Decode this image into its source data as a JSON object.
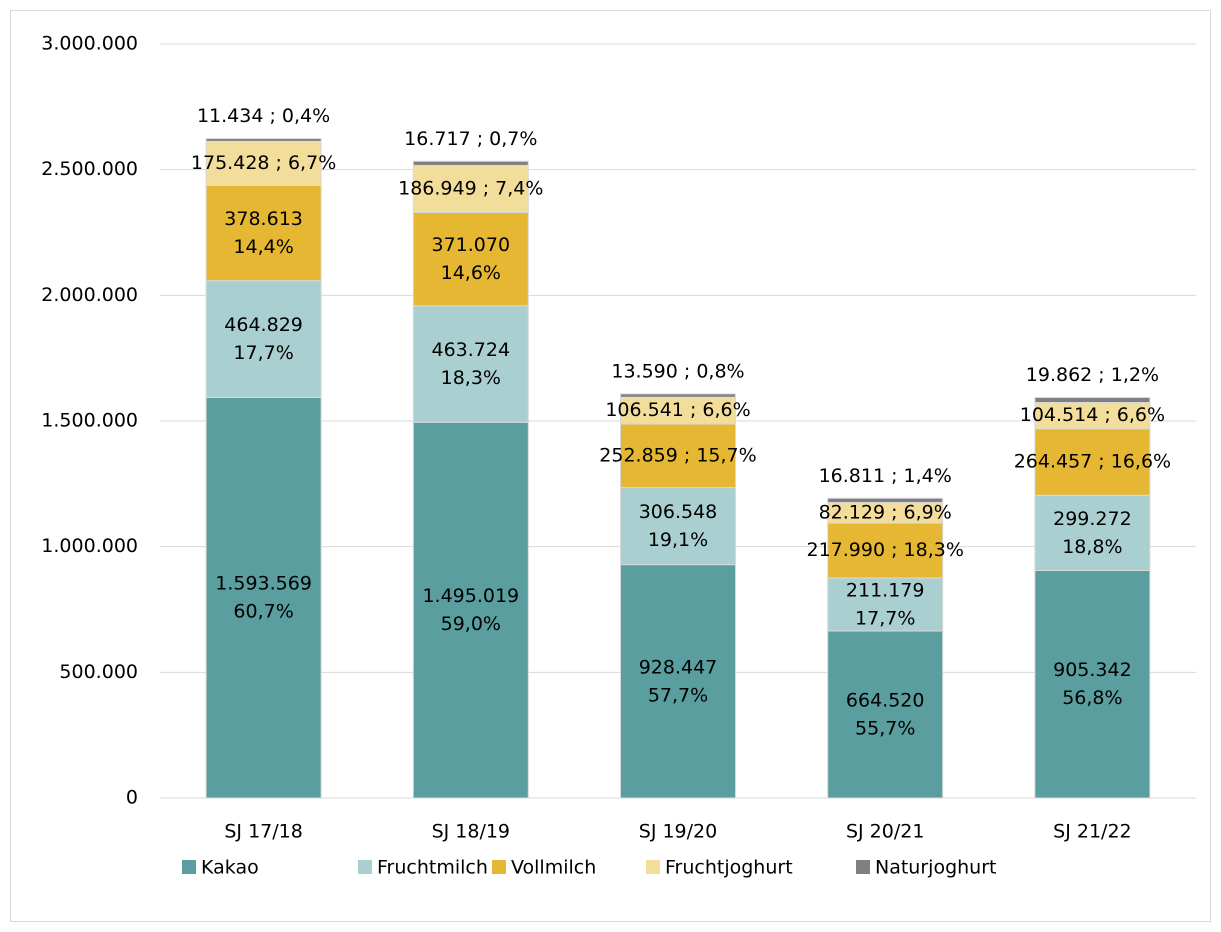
{
  "chart_data": {
    "type": "stacked_bar",
    "categories": [
      "SJ 17/18",
      "SJ 18/19",
      "SJ 19/20",
      "SJ 20/21",
      "SJ 21/22"
    ],
    "series": [
      {
        "name": "Kakao",
        "color": "#5a9e9f",
        "values": [
          1593569,
          1495019,
          928447,
          664520,
          905342
        ],
        "value_labels": [
          "1.593.569\n60,7%",
          "1.495.019\n59,0%",
          "928.447\n57,7%",
          "664.520\n55,7%",
          "905.342\n56,8%"
        ]
      },
      {
        "name": "Fruchtmilch",
        "color": "#aacfd0",
        "values": [
          464829,
          463724,
          306548,
          211179,
          299272
        ],
        "value_labels": [
          "464.829\n17,7%",
          "463.724\n18,3%",
          "306.548\n19,1%",
          "211.179\n17,7%",
          "299.272\n18,8%"
        ]
      },
      {
        "name": "Vollmilch",
        "color": "#e5b732",
        "values": [
          378613,
          371070,
          252859,
          217990,
          264457
        ],
        "value_labels": [
          "378.613\n14,4%",
          "371.070\n14,6%",
          "252.859 ; 15,7%",
          "217.990 ; 18,3%",
          "264.457 ; 16,6%"
        ]
      },
      {
        "name": "Fruchtjoghurt",
        "color": "#f3dd9b",
        "values": [
          175428,
          186949,
          106541,
          82129,
          104514
        ],
        "value_labels": [
          "175.428 ; 6,7%",
          "186.949 ; 7,4%",
          "106.541 ; 6,6%",
          "82.129 ; 6,9%",
          "104.514 ; 6,6%"
        ]
      },
      {
        "name": "Naturjoghurt",
        "color": "#808080",
        "values": [
          11434,
          16717,
          13590,
          16811,
          19862
        ],
        "value_labels": [
          "11.434 ; 0,4%",
          "16.717 ; 0,7%",
          "13.590 ; 0,8%",
          "16.811 ; 1,4%",
          "19.862 ; 1,2%"
        ]
      }
    ],
    "ylim": [
      0,
      3000000
    ],
    "yticks": [
      0,
      {
        "value": 500000,
        "label": "500.000"
      },
      {
        "value": 1000000,
        "label": "1.000.000"
      },
      {
        "value": 1500000,
        "label": "1.500.000"
      },
      {
        "value": 2000000,
        "label": "2.000.000"
      },
      {
        "value": 2500000,
        "label": "2.500.000"
      },
      {
        "value": 3000000,
        "label": "3.000.000"
      }
    ],
    "grid": true,
    "legend": "bottom"
  }
}
